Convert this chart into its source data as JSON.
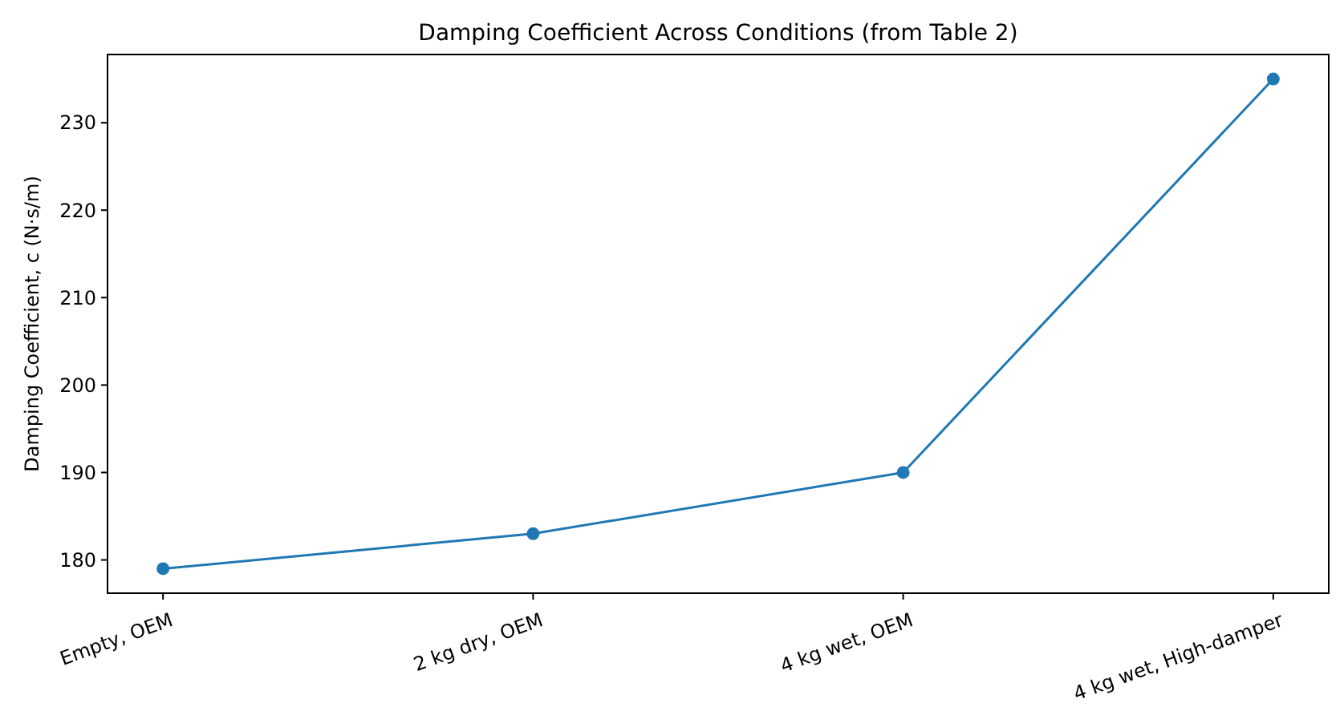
{
  "chart_data": {
    "type": "line",
    "title": "Damping Coefficient Across Conditions (from Table 2)",
    "ylabel": "Damping Coefficient, c (N·s/m)",
    "categories": [
      "Empty, OEM",
      "2 kg dry, OEM",
      "4 kg wet, OEM",
      "4 kg wet, High-damper"
    ],
    "series": [
      {
        "color": "#1f77b4",
        "values": [
          179,
          183,
          190,
          235
        ]
      }
    ],
    "ylim": [
      176.2,
      237.8
    ],
    "yticks": [
      180,
      190,
      200,
      210,
      220,
      230
    ],
    "grid": false,
    "marker": "circle",
    "line_style": "solid"
  }
}
